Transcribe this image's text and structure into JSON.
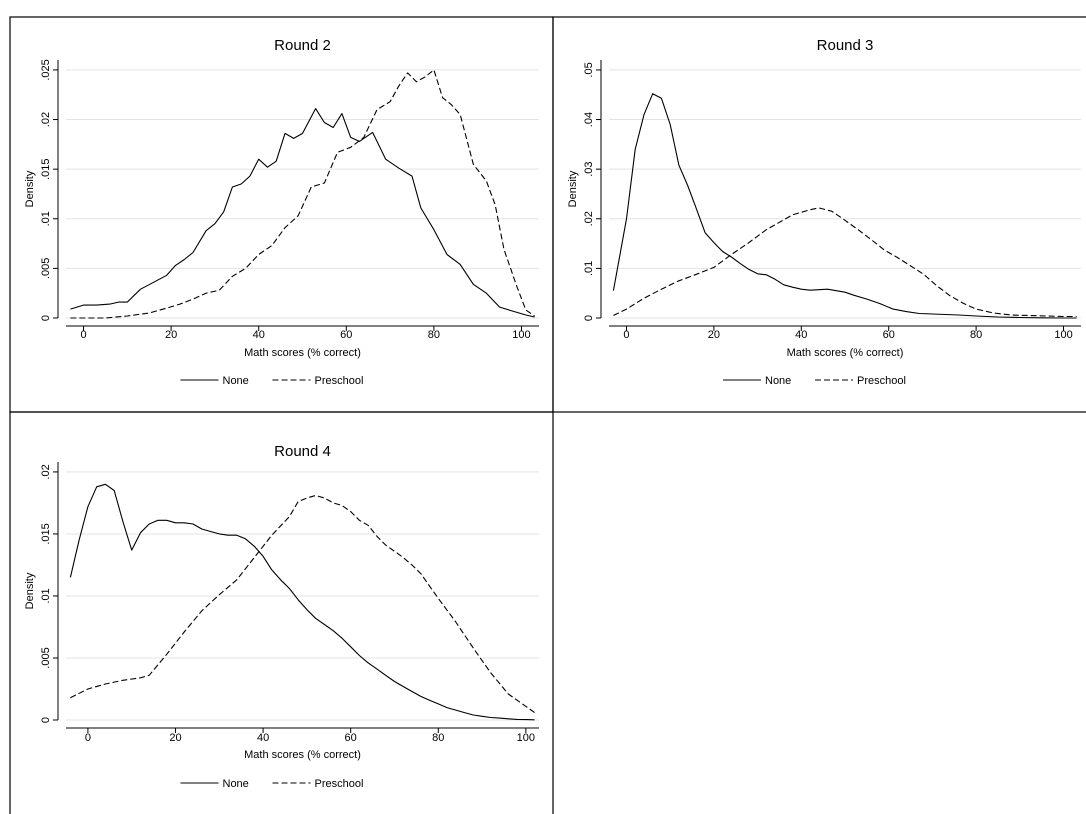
{
  "chart_data": [
    {
      "type": "line",
      "title": "Round 2",
      "xlabel": "Math scores (% correct)",
      "ylabel": "Density",
      "xlim": [
        -4,
        104
      ],
      "ylim": [
        0,
        0.026
      ],
      "xticks": [
        0,
        20,
        40,
        60,
        80,
        100
      ],
      "yticks": [
        0,
        0.005,
        0.01,
        0.015,
        0.02,
        0.025
      ],
      "ytick_labels": [
        "0",
        ".005",
        ".01",
        ".015",
        ".02",
        ".025"
      ],
      "grid": true,
      "legend": "bottom",
      "series": [
        {
          "name": "None",
          "dash": "solid",
          "x": [
            -3,
            0,
            3,
            6,
            8,
            10,
            13,
            16,
            19,
            21,
            23,
            25,
            28,
            30,
            32,
            34,
            36,
            38,
            40,
            42,
            44,
            46,
            48,
            50,
            53,
            55,
            57,
            59,
            61,
            63,
            66,
            69,
            72,
            75,
            77,
            80,
            83,
            86,
            89,
            92,
            95,
            98,
            101,
            103
          ],
          "y": [
            0.0009,
            0.0013,
            0.0013,
            0.0014,
            0.0016,
            0.0016,
            0.0029,
            0.0036,
            0.0043,
            0.0053,
            0.0059,
            0.0066,
            0.0088,
            0.0095,
            0.0107,
            0.0132,
            0.0135,
            0.0143,
            0.016,
            0.0152,
            0.0158,
            0.0186,
            0.0181,
            0.0186,
            0.0211,
            0.0197,
            0.0192,
            0.0206,
            0.0182,
            0.0178,
            0.0187,
            0.016,
            0.0151,
            0.0143,
            0.0111,
            0.0089,
            0.0064,
            0.0054,
            0.0034,
            0.0025,
            0.0011,
            0.0007,
            0.0003,
            0.0001
          ]
        },
        {
          "name": "Preschool",
          "dash": "dashed",
          "x": [
            -3,
            0,
            5,
            10,
            15,
            19,
            22,
            25,
            28,
            31,
            34,
            37,
            40,
            43,
            46,
            49,
            52,
            55,
            58,
            61,
            64,
            67,
            70,
            72,
            74,
            76,
            78,
            80,
            82,
            84,
            86,
            89,
            92,
            94,
            96,
            99,
            101,
            103
          ],
          "y": [
            0,
            0,
            0,
            0.0002,
            0.0005,
            0.001,
            0.0014,
            0.0019,
            0.0025,
            0.0028,
            0.0042,
            0.005,
            0.0064,
            0.0073,
            0.0091,
            0.0103,
            0.0132,
            0.0136,
            0.0167,
            0.0172,
            0.0182,
            0.021,
            0.0218,
            0.0234,
            0.0247,
            0.0238,
            0.0243,
            0.025,
            0.0222,
            0.0215,
            0.0205,
            0.0155,
            0.0138,
            0.0114,
            0.0069,
            0.0031,
            0.0008,
            0.0002
          ]
        }
      ]
    },
    {
      "type": "line",
      "title": "Round 3",
      "xlabel": "Math scores (% correct)",
      "ylabel": "Density",
      "xlim": [
        -4,
        104
      ],
      "ylim": [
        0,
        0.052
      ],
      "xticks": [
        0,
        20,
        40,
        60,
        80,
        100
      ],
      "yticks": [
        0,
        0.01,
        0.02,
        0.03,
        0.04,
        0.05
      ],
      "ytick_labels": [
        "0",
        ".01",
        ".02",
        ".03",
        ".04",
        ".05"
      ],
      "grid": true,
      "legend": "bottom",
      "series": [
        {
          "name": "None",
          "dash": "solid",
          "x": [
            -3,
            0,
            2,
            4,
            6,
            8,
            10,
            12,
            14,
            16,
            18,
            20,
            22,
            24,
            26,
            28,
            30,
            32,
            34,
            36,
            38,
            40,
            42,
            44,
            46,
            48,
            50,
            52,
            55,
            58,
            61,
            64,
            67,
            70,
            73,
            76,
            80,
            85,
            90,
            95,
            100,
            103
          ],
          "y": [
            0.0055,
            0.02,
            0.034,
            0.041,
            0.0452,
            0.0443,
            0.039,
            0.0308,
            0.0267,
            0.022,
            0.0172,
            0.0152,
            0.0134,
            0.0123,
            0.011,
            0.0098,
            0.0089,
            0.0087,
            0.0078,
            0.0067,
            0.0062,
            0.0058,
            0.0056,
            0.0057,
            0.0058,
            0.0055,
            0.0052,
            0.0046,
            0.0038,
            0.0029,
            0.0018,
            0.0013,
            0.0009,
            0.0008,
            0.0007,
            0.0006,
            0.0004,
            0.0002,
            0.0001,
            5e-05,
            0,
            0
          ]
        },
        {
          "name": "Preschool",
          "dash": "dashed",
          "x": [
            -3,
            0,
            4,
            8,
            12,
            16,
            20,
            24,
            28,
            32,
            36,
            38,
            40,
            42,
            44,
            47,
            50,
            53,
            56,
            59,
            62,
            65,
            68,
            71,
            74,
            77,
            80,
            84,
            88,
            92,
            96,
            100,
            103
          ],
          "y": [
            0.0005,
            0.0018,
            0.004,
            0.0058,
            0.0075,
            0.0088,
            0.0102,
            0.0128,
            0.0152,
            0.0178,
            0.0198,
            0.0208,
            0.0213,
            0.0218,
            0.0222,
            0.0215,
            0.0197,
            0.0178,
            0.0158,
            0.0137,
            0.0122,
            0.0105,
            0.0088,
            0.0065,
            0.0045,
            0.003,
            0.0018,
            0.001,
            0.0006,
            0.0005,
            0.0004,
            0.0003,
            0.0003
          ]
        }
      ]
    },
    {
      "type": "line",
      "title": "Round 4",
      "xlabel": "Math scores (% correct)",
      "ylabel": "Density",
      "xlim": [
        -5,
        103
      ],
      "ylim": [
        0,
        0.0208
      ],
      "xticks": [
        0,
        20,
        40,
        60,
        80,
        100
      ],
      "yticks": [
        0,
        0.005,
        0.01,
        0.015,
        0.02
      ],
      "ytick_labels": [
        "0",
        ".005",
        ".01",
        ".015",
        ".02"
      ],
      "grid": true,
      "legend": "bottom",
      "series": [
        {
          "name": "None",
          "dash": "solid",
          "x": [
            -4,
            -2,
            0,
            2,
            4,
            6,
            8,
            10,
            12,
            14,
            16,
            18,
            20,
            22,
            24,
            26,
            28,
            30,
            32,
            34,
            36,
            38,
            40,
            42,
            44,
            46,
            48,
            50,
            52,
            54,
            56,
            58,
            60,
            62,
            64,
            66,
            68,
            70,
            72,
            74,
            76,
            78,
            80,
            82,
            84,
            86,
            88,
            90,
            92,
            94,
            96,
            98,
            100,
            102
          ],
          "y": [
            0.0115,
            0.0145,
            0.0172,
            0.0188,
            0.019,
            0.0185,
            0.016,
            0.0137,
            0.0151,
            0.0158,
            0.0161,
            0.0161,
            0.0159,
            0.0159,
            0.0158,
            0.0154,
            0.0152,
            0.015,
            0.0149,
            0.0149,
            0.0146,
            0.014,
            0.0132,
            0.0121,
            0.0113,
            0.0106,
            0.0097,
            0.0089,
            0.0082,
            0.0077,
            0.0072,
            0.0066,
            0.0059,
            0.0052,
            0.0046,
            0.0041,
            0.0036,
            0.0031,
            0.0027,
            0.0023,
            0.0019,
            0.0016,
            0.0013,
            0.001,
            0.0008,
            0.0006,
            0.0004,
            0.0003,
            0.0002,
            0.00015,
            0.0001,
            5e-05,
            3e-05,
            2e-05
          ]
        },
        {
          "name": "Preschool",
          "dash": "dashed",
          "x": [
            -4,
            0,
            4,
            8,
            12,
            14,
            18,
            22,
            26,
            30,
            34,
            38,
            42,
            46,
            48,
            50,
            52,
            54,
            56,
            58,
            60,
            62,
            64,
            66,
            68,
            70,
            72,
            74,
            76,
            78,
            80,
            84,
            88,
            92,
            96,
            100,
            102
          ],
          "y": [
            0.0018,
            0.0025,
            0.0029,
            0.0032,
            0.0034,
            0.0036,
            0.0053,
            0.0071,
            0.0088,
            0.0101,
            0.0113,
            0.0131,
            0.0149,
            0.0164,
            0.0176,
            0.0179,
            0.0181,
            0.0179,
            0.0175,
            0.0173,
            0.0168,
            0.0161,
            0.0157,
            0.0148,
            0.0141,
            0.0136,
            0.0131,
            0.0125,
            0.0118,
            0.0108,
            0.0098,
            0.0079,
            0.0058,
            0.0038,
            0.0021,
            0.0011,
            0.0006
          ]
        }
      ]
    }
  ]
}
